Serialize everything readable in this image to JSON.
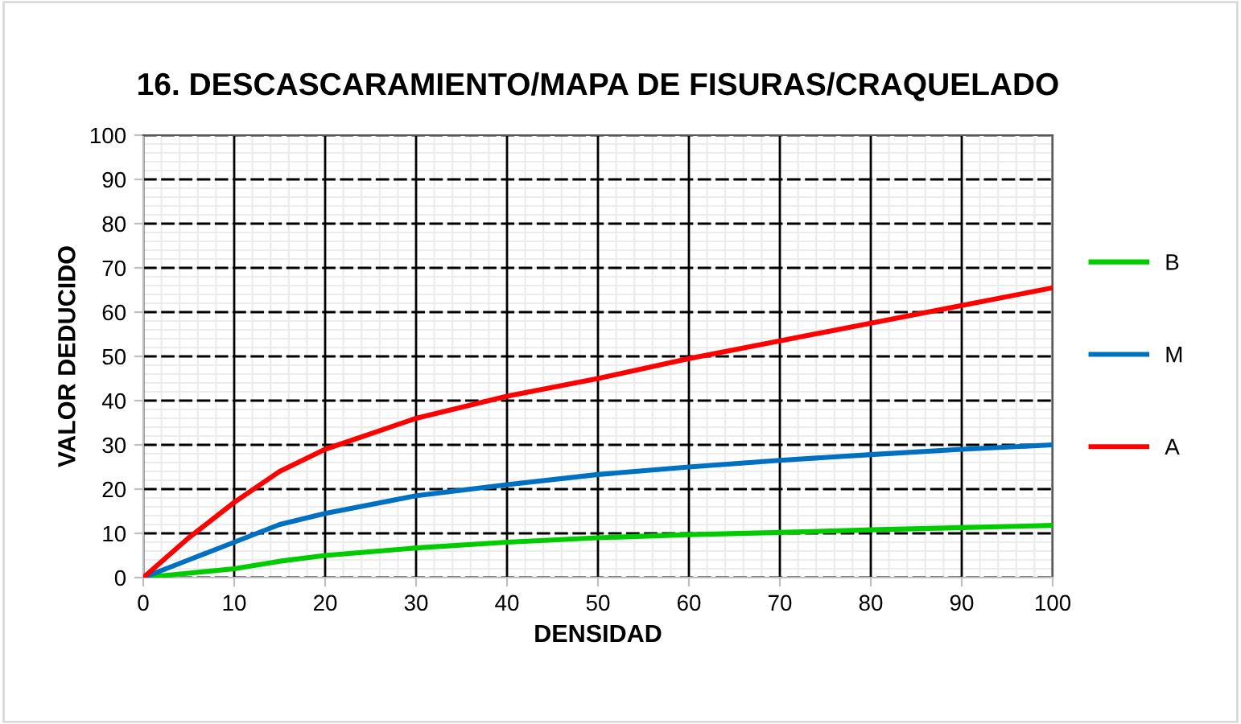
{
  "chart_data": {
    "type": "line",
    "title": "16. DESCASCARAMIENTO/MAPA DE FISURAS/CRAQUELADO",
    "xlabel": "DENSIDAD",
    "ylabel": "VALOR DEDUCIDO",
    "x": [
      0,
      5,
      10,
      15,
      20,
      30,
      40,
      50,
      60,
      70,
      80,
      90,
      100
    ],
    "series": [
      {
        "name": "B",
        "color": "#00cc00",
        "values": [
          0,
          1,
          2,
          3.7,
          5,
          6.7,
          8,
          9,
          9.7,
          10.2,
          10.8,
          11.3,
          11.8
        ]
      },
      {
        "name": "M",
        "color": "#0070c0",
        "values": [
          0,
          4,
          8,
          12,
          14.5,
          18.5,
          21,
          23.3,
          25,
          26.5,
          27.8,
          29,
          30
        ]
      },
      {
        "name": "A",
        "color": "#ff0000",
        "values": [
          0,
          9,
          17,
          24,
          29,
          36,
          41,
          45,
          49.5,
          53.5,
          57.5,
          61.5,
          65.5
        ]
      }
    ],
    "xlim": [
      0,
      100
    ],
    "ylim": [
      0,
      100
    ],
    "xticks": [
      0,
      10,
      20,
      30,
      40,
      50,
      60,
      70,
      80,
      90,
      100
    ],
    "yticks": [
      0,
      10,
      20,
      30,
      40,
      50,
      60,
      70,
      80,
      90,
      100
    ],
    "grid": true,
    "legend": "right",
    "marker": "none",
    "line_style": "solid"
  }
}
